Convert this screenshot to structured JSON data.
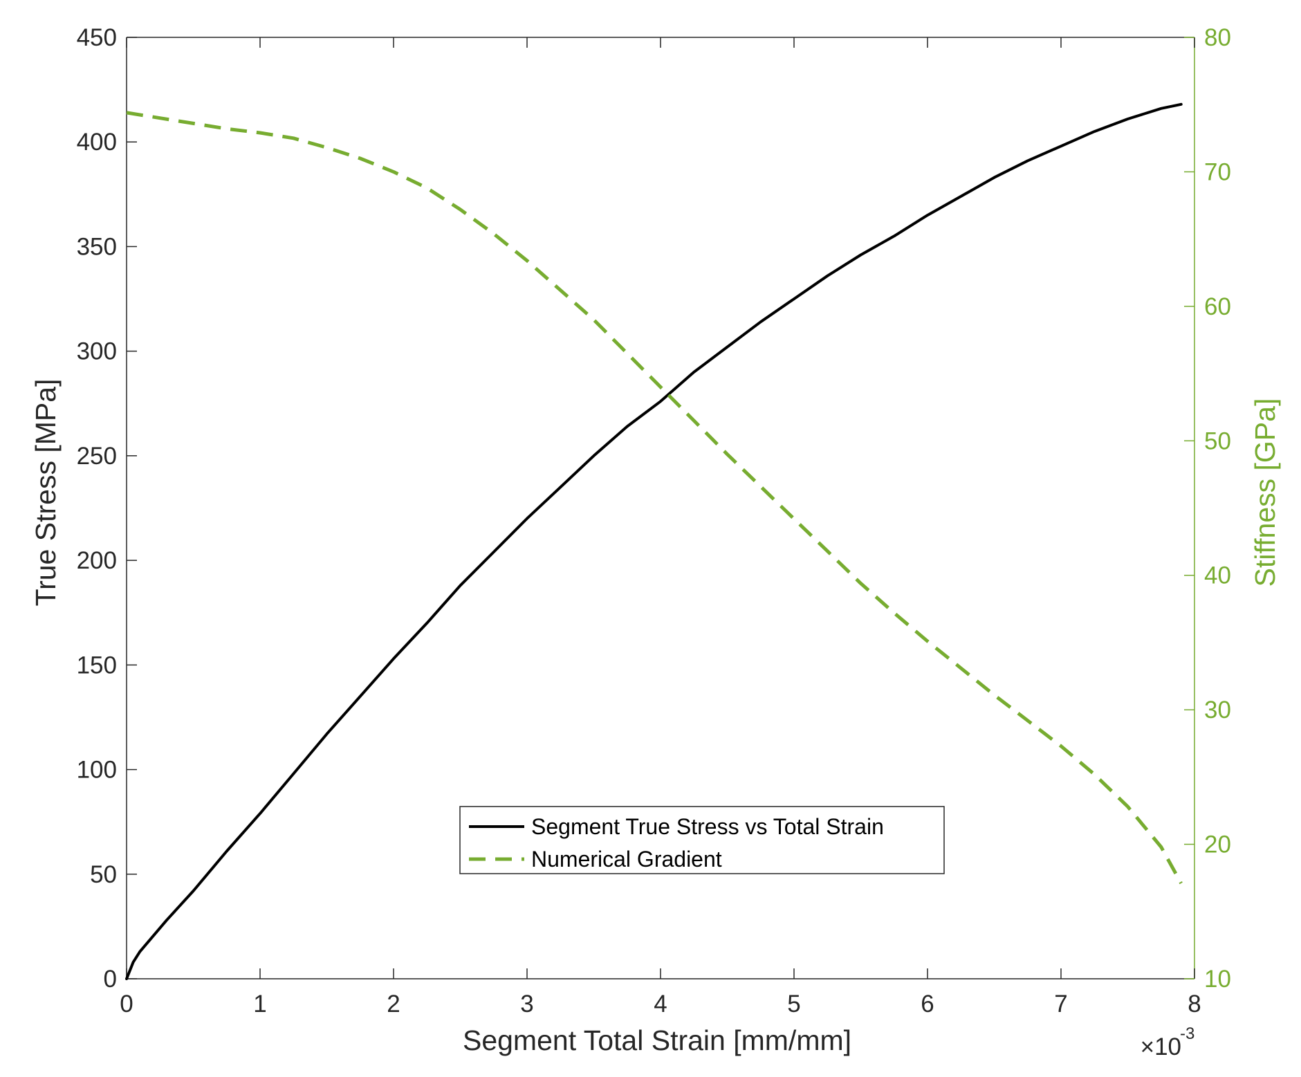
{
  "chart_data": {
    "type": "line",
    "title": "",
    "xlabel": "Segment Total Strain [mm/mm]",
    "x_multiplier_label": {
      "base": "×10",
      "exponent": "-3"
    },
    "xlim": [
      0,
      8
    ],
    "xticks": [
      0,
      1,
      2,
      3,
      4,
      5,
      6,
      7,
      8
    ],
    "y_left": {
      "label": "True Stress [MPa]",
      "lim": [
        0,
        450
      ],
      "ticks": [
        0,
        50,
        100,
        150,
        200,
        250,
        300,
        350,
        400,
        450
      ],
      "color": "#000000"
    },
    "y_right": {
      "label": "Stiffness [GPa]",
      "lim": [
        10,
        80
      ],
      "ticks": [
        10,
        20,
        30,
        40,
        50,
        60,
        70,
        80
      ],
      "color": "#77ac30"
    },
    "grid": false,
    "legend_position": "lower-center",
    "series": [
      {
        "name": "Segment True Stress vs Total Strain",
        "axis": "left",
        "color": "#000000",
        "style": "solid",
        "x": [
          0,
          0.05,
          0.1,
          0.3,
          0.5,
          0.75,
          1.0,
          1.25,
          1.5,
          1.75,
          2.0,
          2.25,
          2.5,
          2.75,
          3.0,
          3.25,
          3.5,
          3.75,
          4.0,
          4.25,
          4.5,
          4.75,
          5.0,
          5.25,
          5.5,
          5.75,
          6.0,
          6.25,
          6.5,
          6.75,
          7.0,
          7.25,
          7.5,
          7.75,
          7.9
        ],
        "y": [
          0,
          8,
          13,
          28,
          42,
          61,
          79,
          98,
          117,
          135,
          153,
          170,
          188,
          204,
          220,
          235,
          250,
          264,
          276,
          290,
          302,
          314,
          325,
          336,
          346,
          355,
          365,
          374,
          383,
          391,
          398,
          405,
          411,
          416,
          418
        ]
      },
      {
        "name": "Numerical Gradient",
        "axis": "right",
        "color": "#77ac30",
        "style": "dashed",
        "x": [
          0,
          0.25,
          0.5,
          0.75,
          1.0,
          1.25,
          1.5,
          1.75,
          2.0,
          2.25,
          2.5,
          2.75,
          3.0,
          3.25,
          3.5,
          3.75,
          4.0,
          4.25,
          4.5,
          4.75,
          5.0,
          5.25,
          5.5,
          5.75,
          6.0,
          6.25,
          6.5,
          6.75,
          7.0,
          7.25,
          7.5,
          7.75,
          7.9
        ],
        "y": [
          74.4,
          74.0,
          73.6,
          73.2,
          72.9,
          72.5,
          71.8,
          71.0,
          70.0,
          68.8,
          67.2,
          65.4,
          63.4,
          61.2,
          59.0,
          56.5,
          54.0,
          51.5,
          49.0,
          46.6,
          44.2,
          41.8,
          39.4,
          37.2,
          35.1,
          33.1,
          31.1,
          29.2,
          27.3,
          25.2,
          22.8,
          19.8,
          17.1
        ]
      }
    ]
  }
}
